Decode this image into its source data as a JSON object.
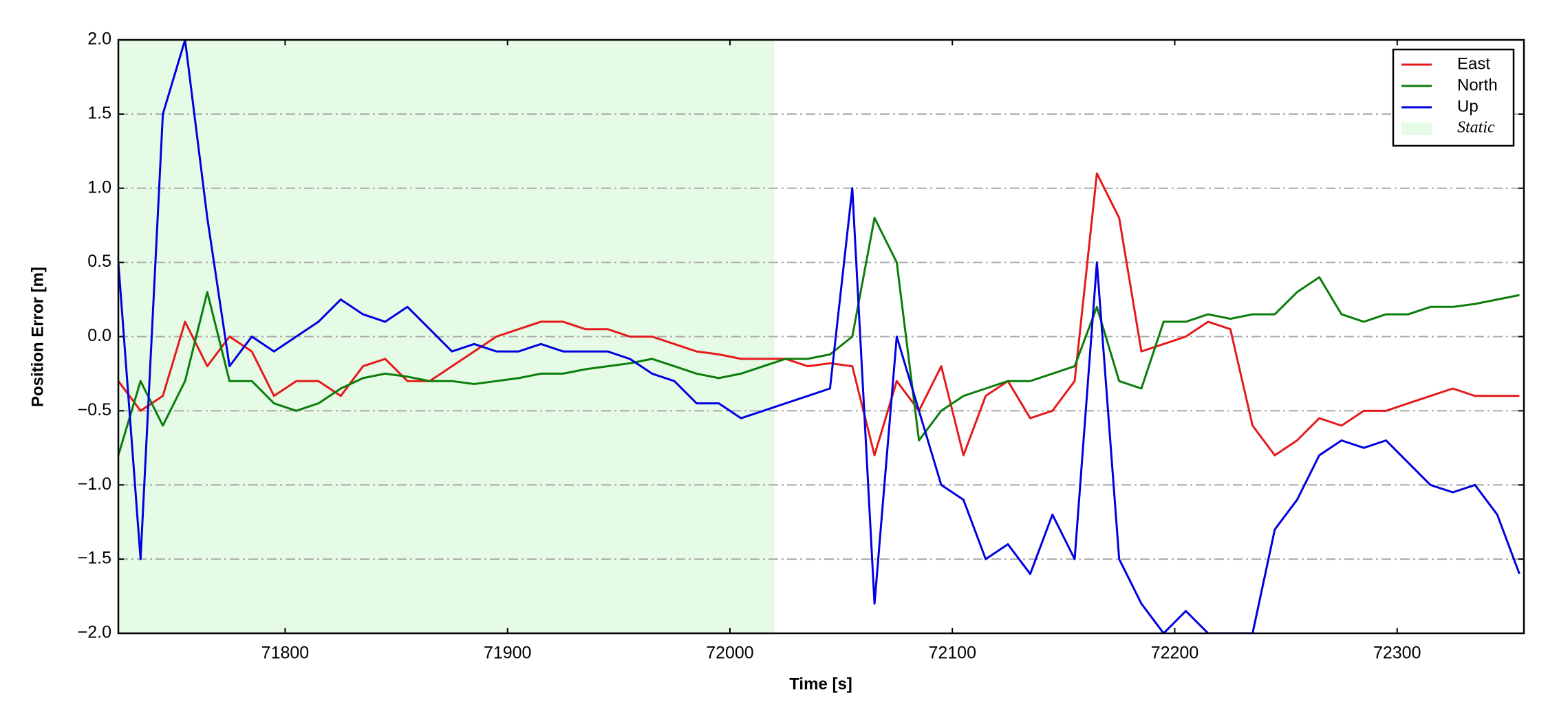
{
  "chart_data": {
    "type": "line",
    "x_label": "Time [s]",
    "y_label": "Position Error [m]",
    "xlim": [
      71725,
      72357
    ],
    "ylim": [
      -2.0,
      2.0
    ],
    "xticks": [
      71800,
      71900,
      72000,
      72100,
      72200,
      72300
    ],
    "yticks": [
      {
        "value": -2.0,
        "label": "−2.0"
      },
      {
        "value": -1.5,
        "label": "−1.5"
      },
      {
        "value": -1.0,
        "label": "−1.0"
      },
      {
        "value": -0.5,
        "label": "−0.5"
      },
      {
        "value": 0.0,
        "label": "0.0"
      },
      {
        "value": 0.5,
        "label": "0.5"
      },
      {
        "value": 1.0,
        "label": "1.0"
      },
      {
        "value": 1.5,
        "label": "1.5"
      },
      {
        "value": 2.0,
        "label": "2.0"
      }
    ],
    "grid": true,
    "legend": "upper right",
    "spans": [
      {
        "name": "Static",
        "color": "#e6fbe6",
        "x": [
          71725,
          72020
        ]
      }
    ],
    "x": [
      71725,
      71735,
      71745,
      71755,
      71765,
      71775,
      71785,
      71795,
      71805,
      71815,
      71825,
      71835,
      71845,
      71855,
      71865,
      71875,
      71885,
      71895,
      71905,
      71915,
      71925,
      71935,
      71945,
      71955,
      71965,
      71975,
      71985,
      71995,
      72005,
      72015,
      72025,
      72035,
      72045,
      72055,
      72065,
      72075,
      72085,
      72095,
      72105,
      72115,
      72125,
      72135,
      72145,
      72155,
      72165,
      72175,
      72185,
      72195,
      72205,
      72215,
      72225,
      72235,
      72245,
      72255,
      72265,
      72275,
      72285,
      72295,
      72305,
      72315,
      72325,
      72335,
      72345,
      72355
    ],
    "series": [
      {
        "name": "East",
        "color": "#e41a1c",
        "values": [
          -0.3,
          -0.5,
          -0.4,
          0.1,
          -0.2,
          0.0,
          -0.1,
          -0.4,
          -0.3,
          -0.3,
          -0.4,
          -0.2,
          -0.15,
          -0.3,
          -0.3,
          -0.2,
          -0.1,
          0.0,
          0.05,
          0.1,
          0.1,
          0.05,
          0.05,
          0.0,
          0.0,
          -0.05,
          -0.1,
          -0.12,
          -0.15,
          -0.15,
          -0.15,
          -0.2,
          -0.18,
          -0.2,
          -0.8,
          -0.3,
          -0.5,
          -0.2,
          -0.8,
          -0.4,
          -0.3,
          -0.55,
          -0.5,
          -0.3,
          1.1,
          0.8,
          -0.1,
          -0.05,
          0.0,
          0.1,
          0.05,
          -0.6,
          -0.8,
          -0.7,
          -0.55,
          -0.6,
          -0.5,
          -0.5,
          -0.45,
          -0.4,
          -0.35,
          -0.4,
          -0.4,
          -0.4
        ]
      },
      {
        "name": "North",
        "color": "#0a7d0a",
        "values": [
          -0.8,
          -0.3,
          -0.6,
          -0.3,
          0.3,
          -0.3,
          -0.3,
          -0.45,
          -0.5,
          -0.45,
          -0.35,
          -0.28,
          -0.25,
          -0.27,
          -0.3,
          -0.3,
          -0.32,
          -0.3,
          -0.28,
          -0.25,
          -0.25,
          -0.22,
          -0.2,
          -0.18,
          -0.15,
          -0.2,
          -0.25,
          -0.28,
          -0.25,
          -0.2,
          -0.15,
          -0.15,
          -0.12,
          0.0,
          0.8,
          0.5,
          -0.7,
          -0.5,
          -0.4,
          -0.35,
          -0.3,
          -0.3,
          -0.25,
          -0.2,
          0.2,
          -0.3,
          -0.35,
          0.1,
          0.1,
          0.15,
          0.12,
          0.15,
          0.15,
          0.3,
          0.4,
          0.15,
          0.1,
          0.15,
          0.15,
          0.2,
          0.2,
          0.22,
          0.25,
          0.28
        ]
      },
      {
        "name": "Up",
        "color": "#0000e0",
        "values": [
          0.5,
          -1.5,
          1.5,
          2.0,
          0.8,
          -0.2,
          0.0,
          -0.1,
          0.0,
          0.1,
          0.25,
          0.15,
          0.1,
          0.2,
          0.05,
          -0.1,
          -0.05,
          -0.1,
          -0.1,
          -0.05,
          -0.1,
          -0.1,
          -0.1,
          -0.15,
          -0.25,
          -0.3,
          -0.45,
          -0.45,
          -0.55,
          -0.5,
          -0.45,
          -0.4,
          -0.35,
          1.0,
          -1.8,
          0.0,
          -0.5,
          -1.0,
          -1.1,
          -1.5,
          -1.4,
          -1.6,
          -1.2,
          -1.5,
          0.5,
          -1.5,
          -1.8,
          -2.0,
          -1.85,
          -2.0,
          -2.0,
          -2.0,
          -1.3,
          -1.1,
          -0.8,
          -0.7,
          -0.75,
          -0.7,
          -0.85,
          -1.0,
          -1.05,
          -1.0,
          -1.2,
          -1.6
        ]
      }
    ]
  }
}
